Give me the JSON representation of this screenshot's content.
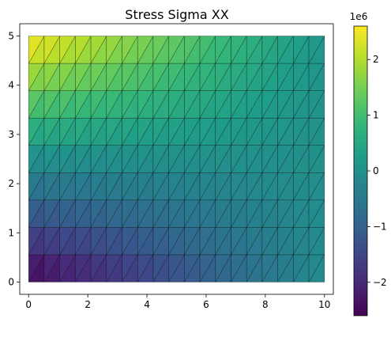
{
  "chart_data": {
    "type": "heatmap",
    "subtype": "triangular-mesh",
    "title": "Stress Sigma XX",
    "xlabel": "",
    "ylabel": "",
    "xlim": [
      -0.3,
      10.3
    ],
    "ylim": [
      -0.25,
      5.25
    ],
    "xticks": [
      0,
      2,
      4,
      6,
      8,
      10
    ],
    "xtick_labels": [
      "0",
      "2",
      "4",
      "6",
      "8",
      "10"
    ],
    "yticks": [
      0,
      1,
      2,
      3,
      4,
      5
    ],
    "ytick_labels": [
      "0",
      "1",
      "2",
      "3",
      "4",
      "5"
    ],
    "grid": false,
    "colormap": "viridis",
    "colormap_stops": [
      "#440154",
      "#482878",
      "#3e4989",
      "#31688e",
      "#26828e",
      "#1f9e89",
      "#35b779",
      "#6ece58",
      "#b5de2b",
      "#fde725"
    ],
    "mesh": {
      "x_range": [
        0,
        10
      ],
      "y_range": [
        0,
        5
      ],
      "nx": 19,
      "ny": 9,
      "triangulation": "each rectangular cell split along its lower-left to upper-right diagonal",
      "edge_color": "#000000"
    },
    "field": {
      "quantity": "sigma_xx",
      "center_value": 0.0,
      "bottom_left_value": -2600000.0,
      "top_left_value": 2600000.0,
      "bottom_right_value": -100000.0,
      "top_right_value": 100000.0
    },
    "colorbar": {
      "range": [
        -2600000.0,
        2600000.0
      ],
      "scale_label": "1e6",
      "ticks": [
        -2,
        -1,
        0,
        1,
        2
      ],
      "tick_labels": [
        "−2",
        "−1",
        "0",
        "1",
        "2"
      ]
    }
  }
}
